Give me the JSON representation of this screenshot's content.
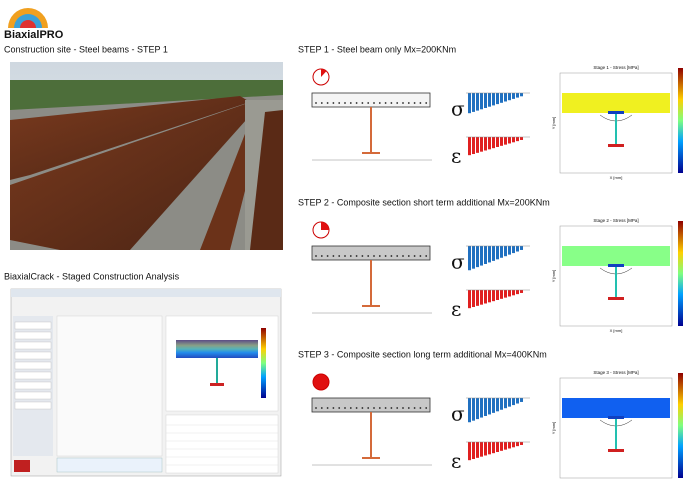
{
  "header": {
    "logo": "BiaxialPRO"
  },
  "left": {
    "photo_caption": "Construction site - Steel beams - STEP 1",
    "app_caption": "BiaxialCrack - Staged Construction Analysis"
  },
  "steps": [
    {
      "heading": "STEP 1 - Steel beam only Mx=200KNm",
      "stress_title": "Stage 1 - Stress [MPa]",
      "sigma": "σ",
      "epsilon": "ε"
    },
    {
      "heading": "STEP 2 - Composite section short term additional Mx=200KNm",
      "stress_title": "Stage 2 - Stress [MPa]",
      "sigma": "σ",
      "epsilon": "ε"
    },
    {
      "heading": "STEP 3 - Composite section long term additional Mx=400KNm",
      "stress_title": "Stage 3 - Stress [MPa]",
      "sigma": "σ",
      "epsilon": "ε"
    }
  ],
  "axes": {
    "x": "X [mm]",
    "y": "Y [mm]"
  }
}
